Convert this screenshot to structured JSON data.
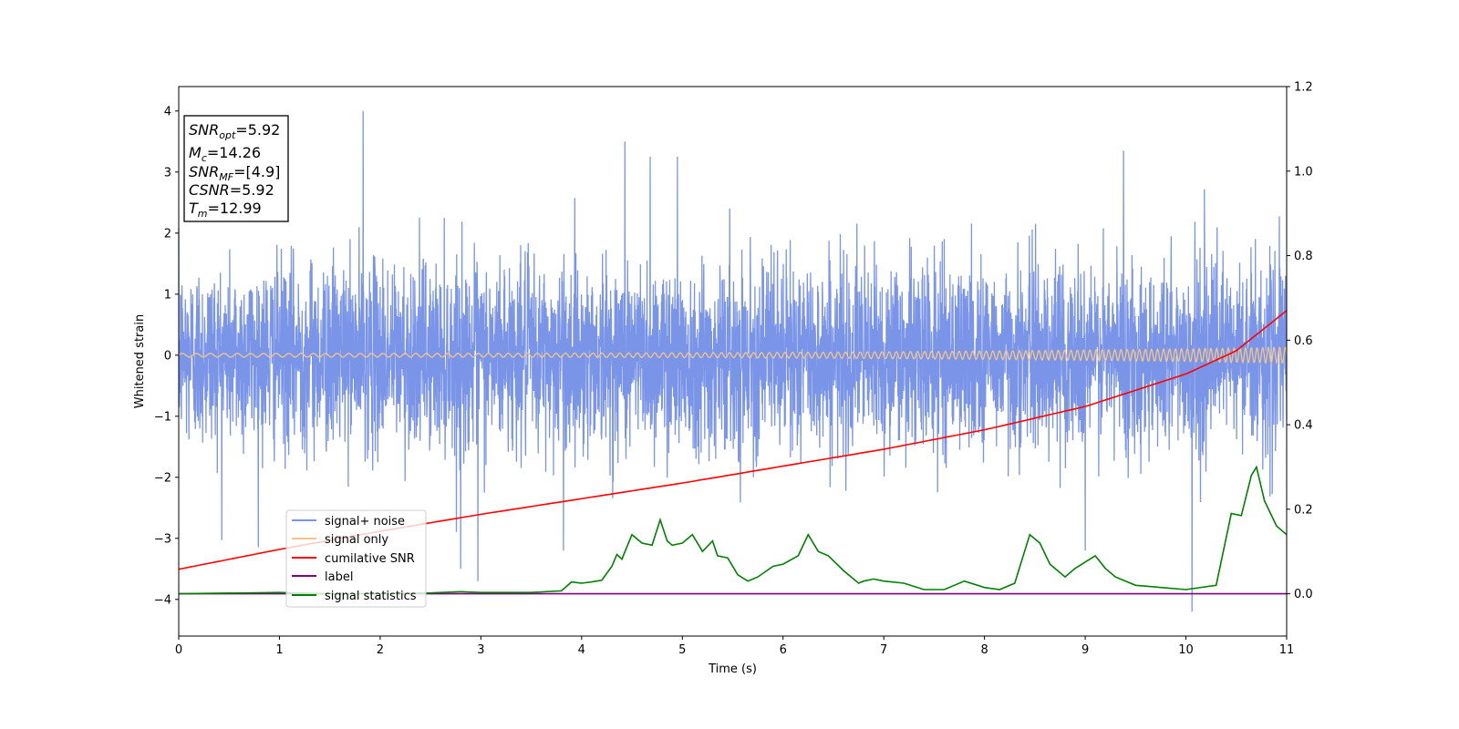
{
  "chart_data": {
    "type": "line",
    "title": "",
    "xlabel": "Time (s)",
    "ylabel": "Whitened strain",
    "xlim": [
      0,
      11
    ],
    "ylim_left": [
      -4.6,
      4.4
    ],
    "ylim_right": [
      -0.1,
      1.2
    ],
    "xticks": [
      "0",
      "1",
      "2",
      "3",
      "4",
      "5",
      "6",
      "7",
      "8",
      "9",
      "10",
      "11"
    ],
    "yticks_left": [
      "−4",
      "−3",
      "−2",
      "−1",
      "0",
      "1",
      "2",
      "3",
      "4"
    ],
    "yticks_right": [
      "0.0",
      "0.2",
      "0.4",
      "0.6",
      "0.8",
      "1.0",
      "1.2"
    ],
    "grid": false,
    "legend_position": "lower-left",
    "info_box": {
      "lines": [
        {
          "var": "SNR",
          "sub": "opt",
          "value": "=5.92"
        },
        {
          "var": "M",
          "sub": "c",
          "value": "=14.26"
        },
        {
          "var": "SNR",
          "sub": "MF",
          "value": "=[4.9]"
        },
        {
          "var": "CSNR",
          "sub": "",
          "value": "=5.92"
        },
        {
          "var": "T",
          "sub": "m",
          "value": "=12.99"
        }
      ]
    },
    "series": [
      {
        "name": "signal+ noise",
        "axis": "left",
        "color": "#7a95e8",
        "kind": "noise",
        "approx_std": 0.75,
        "min": -4.2,
        "max": 4.0,
        "spikes": [
          [
            1.83,
            4.0
          ],
          [
            4.43,
            3.5
          ],
          [
            10.06,
            -4.2
          ],
          [
            2.97,
            -3.7
          ],
          [
            2.8,
            -3.5
          ],
          [
            9.38,
            3.35
          ],
          [
            4.68,
            3.25
          ],
          [
            4.95,
            3.25
          ],
          [
            3.82,
            -3.2
          ],
          [
            9.0,
            -3.2
          ]
        ]
      },
      {
        "name": "signal only",
        "axis": "left",
        "color": "#f5c48a",
        "kind": "chirp",
        "amplitude_start": 0.03,
        "amplitude_end": 0.13
      },
      {
        "name": "cumilative SNR",
        "axis": "right",
        "color": "#ff0000",
        "x": [
          0,
          1,
          2,
          3,
          4,
          5,
          6,
          7,
          8,
          9,
          10,
          10.5,
          11
        ],
        "y": [
          0.058,
          0.105,
          0.148,
          0.188,
          0.225,
          0.262,
          0.302,
          0.342,
          0.388,
          0.443,
          0.52,
          0.575,
          0.67
        ]
      },
      {
        "name": "label",
        "axis": "right",
        "color": "#800080",
        "x": [
          0,
          11
        ],
        "y": [
          0.0,
          0.0
        ]
      },
      {
        "name": "signal statistics",
        "axis": "right",
        "color": "#008000",
        "x": [
          0,
          1,
          1.5,
          2,
          2.5,
          2.8,
          3,
          3.5,
          3.8,
          3.9,
          4.0,
          4.1,
          4.2,
          4.3,
          4.35,
          4.4,
          4.5,
          4.6,
          4.7,
          4.78,
          4.85,
          4.9,
          5.0,
          5.1,
          5.2,
          5.3,
          5.35,
          5.45,
          5.55,
          5.65,
          5.75,
          5.9,
          6.0,
          6.15,
          6.25,
          6.35,
          6.45,
          6.6,
          6.75,
          6.8,
          6.9,
          7.0,
          7.2,
          7.4,
          7.6,
          7.8,
          8.0,
          8.15,
          8.3,
          8.45,
          8.55,
          8.65,
          8.8,
          8.9,
          9.0,
          9.1,
          9.2,
          9.3,
          9.5,
          10.0,
          10.3,
          10.45,
          10.55,
          10.65,
          10.7,
          10.78,
          10.9,
          11.0
        ],
        "y": [
          0.0,
          0.003,
          0.0,
          0.0,
          0.002,
          0.005,
          0.003,
          0.003,
          0.007,
          0.028,
          0.025,
          0.028,
          0.032,
          0.065,
          0.093,
          0.082,
          0.14,
          0.12,
          0.115,
          0.175,
          0.125,
          0.115,
          0.12,
          0.14,
          0.1,
          0.125,
          0.09,
          0.085,
          0.045,
          0.03,
          0.04,
          0.065,
          0.07,
          0.09,
          0.14,
          0.1,
          0.09,
          0.055,
          0.025,
          0.03,
          0.035,
          0.03,
          0.025,
          0.01,
          0.01,
          0.03,
          0.015,
          0.01,
          0.025,
          0.14,
          0.12,
          0.07,
          0.04,
          0.06,
          0.075,
          0.09,
          0.06,
          0.04,
          0.02,
          0.01,
          0.02,
          0.19,
          0.185,
          0.28,
          0.3,
          0.22,
          0.16,
          0.14
        ]
      }
    ]
  }
}
